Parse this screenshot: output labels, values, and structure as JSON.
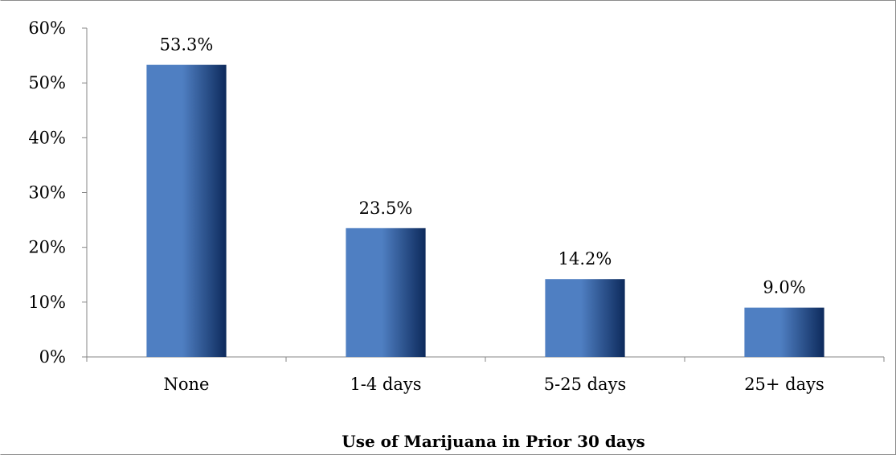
{
  "chart_data": {
    "type": "bar",
    "categories": [
      "None",
      "1-4 days",
      "5-25 days",
      "25+ days"
    ],
    "values": [
      53.3,
      23.5,
      14.2,
      9.0
    ],
    "data_labels": [
      "53.3%",
      "23.5%",
      "14.2%",
      "9.0%"
    ],
    "xlabel": "Use of Marijuana in Prior 30 days",
    "ylabel": "",
    "ylim": [
      0,
      60
    ],
    "yticks": [
      0,
      10,
      20,
      30,
      40,
      50,
      60
    ],
    "ytick_labels": [
      "0%",
      "10%",
      "20%",
      "30%",
      "40%",
      "50%",
      "60%"
    ],
    "grid": false,
    "legend": "none",
    "bar_color_dark": "#0d2a5c",
    "bar_color_light": "#4f7fc2"
  }
}
